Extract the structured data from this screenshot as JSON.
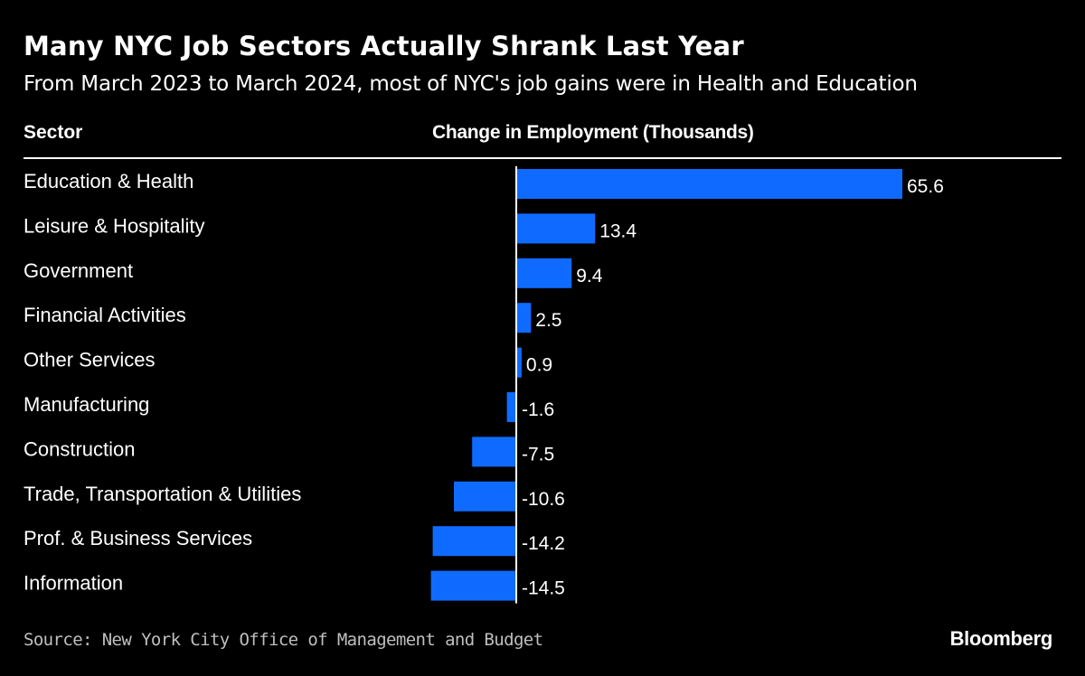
{
  "title": "Many NYC Job Sectors Actually Shrank Last Year",
  "subtitle": "From March 2023 to March 2024, most of NYC's job gains were in Health and Education",
  "columns": {
    "sector": "Sector",
    "change": "Change in Employment (Thousands)"
  },
  "source": "Source: New York City Office of Management and Budget",
  "brand": "Bloomberg",
  "colors": {
    "background": "#000000",
    "bar": "#0f6bff",
    "text": "#ffffff",
    "source_text": "#bfbfbf"
  },
  "chart_data": {
    "type": "bar",
    "orientation": "horizontal",
    "categories": [
      "Education & Health",
      "Leisure & Hospitality",
      "Government",
      "Financial Activities",
      "Other Services",
      "Manufacturing",
      "Construction",
      "Trade, Transportation & Utilities",
      "Prof. & Business Services",
      "Information"
    ],
    "values": [
      65.6,
      13.4,
      9.4,
      2.5,
      0.9,
      -1.6,
      -7.5,
      -10.6,
      -14.2,
      -14.5
    ],
    "labels": [
      "65.6",
      "13.4",
      "9.4",
      "2.5",
      "0.9",
      "-1.6",
      "-7.5",
      "-10.6",
      "-14.2",
      "-14.5"
    ],
    "xlim": [
      -14.5,
      65.6
    ],
    "ylabel": "Sector",
    "xlabel": "Change in Employment (Thousands)",
    "grid": false,
    "legend": "none"
  }
}
